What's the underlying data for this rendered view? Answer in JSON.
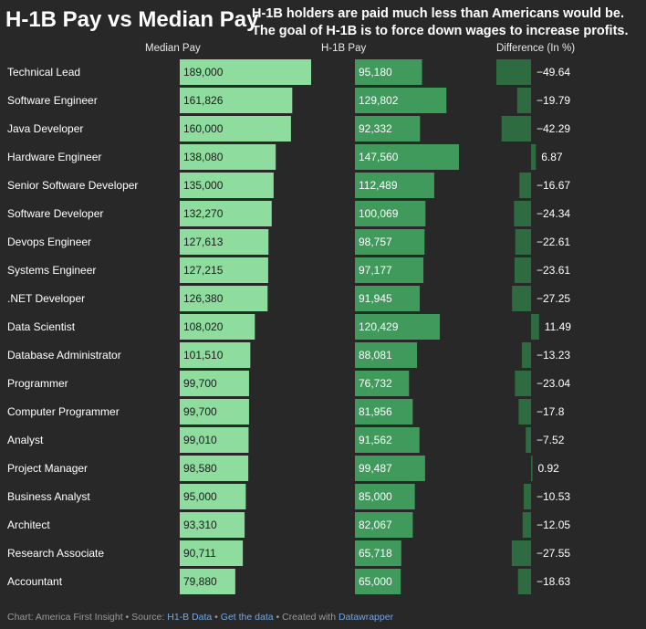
{
  "title": "H-1B Pay vs Median Pay",
  "subtitle_line1": "H-1B holders are paid much less than Americans would be.",
  "subtitle_line2": "The goal of H-1B is to force down wages to increase profits.",
  "colors": {
    "background": "#282828",
    "median_bar": "#8fdc9f",
    "h1b_bar": "#3f9a5c",
    "difference_bar": "#2f6b40",
    "text": "#ffffff"
  },
  "chart_data": {
    "type": "table",
    "columns": [
      "Median Pay",
      "H-1B Pay",
      "Difference (In %)"
    ],
    "rows": [
      {
        "role": "Technical Lead",
        "median": 189000,
        "median_label": "189,000",
        "h1b": 95180,
        "h1b_label": "95,180",
        "diff": -49.64,
        "diff_label": "−49.64"
      },
      {
        "role": "Software Engineer",
        "median": 161826,
        "median_label": "161,826",
        "h1b": 129802,
        "h1b_label": "129,802",
        "diff": -19.79,
        "diff_label": "−19.79"
      },
      {
        "role": "Java Developer",
        "median": 160000,
        "median_label": "160,000",
        "h1b": 92332,
        "h1b_label": "92,332",
        "diff": -42.29,
        "diff_label": "−42.29"
      },
      {
        "role": "Hardware Engineer",
        "median": 138080,
        "median_label": "138,080",
        "h1b": 147560,
        "h1b_label": "147,560",
        "diff": 6.87,
        "diff_label": "6.87"
      },
      {
        "role": "Senior Software Developer",
        "median": 135000,
        "median_label": "135,000",
        "h1b": 112489,
        "h1b_label": "112,489",
        "diff": -16.67,
        "diff_label": "−16.67"
      },
      {
        "role": "Software Developer",
        "median": 132270,
        "median_label": "132,270",
        "h1b": 100069,
        "h1b_label": "100,069",
        "diff": -24.34,
        "diff_label": "−24.34"
      },
      {
        "role": "Devops Engineer",
        "median": 127613,
        "median_label": "127,613",
        "h1b": 98757,
        "h1b_label": "98,757",
        "diff": -22.61,
        "diff_label": "−22.61"
      },
      {
        "role": "Systems Engineer",
        "median": 127215,
        "median_label": "127,215",
        "h1b": 97177,
        "h1b_label": "97,177",
        "diff": -23.61,
        "diff_label": "−23.61"
      },
      {
        "role": ".NET Developer",
        "median": 126380,
        "median_label": "126,380",
        "h1b": 91945,
        "h1b_label": "91,945",
        "diff": -27.25,
        "diff_label": "−27.25"
      },
      {
        "role": "Data Scientist",
        "median": 108020,
        "median_label": "108,020",
        "h1b": 120429,
        "h1b_label": "120,429",
        "diff": 11.49,
        "diff_label": "11.49"
      },
      {
        "role": "Database Administrator",
        "median": 101510,
        "median_label": "101,510",
        "h1b": 88081,
        "h1b_label": "88,081",
        "diff": -13.23,
        "diff_label": "−13.23"
      },
      {
        "role": "Programmer",
        "median": 99700,
        "median_label": "99,700",
        "h1b": 76732,
        "h1b_label": "76,732",
        "diff": -23.04,
        "diff_label": "−23.04"
      },
      {
        "role": "Computer Programmer",
        "median": 99700,
        "median_label": "99,700",
        "h1b": 81956,
        "h1b_label": "81,956",
        "diff": -17.8,
        "diff_label": "−17.8"
      },
      {
        "role": "Analyst",
        "median": 99010,
        "median_label": "99,010",
        "h1b": 91562,
        "h1b_label": "91,562",
        "diff": -7.52,
        "diff_label": "−7.52"
      },
      {
        "role": "Project Manager",
        "median": 98580,
        "median_label": "98,580",
        "h1b": 99487,
        "h1b_label": "99,487",
        "diff": 0.92,
        "diff_label": "0.92"
      },
      {
        "role": "Business Analyst",
        "median": 95000,
        "median_label": "95,000",
        "h1b": 85000,
        "h1b_label": "85,000",
        "diff": -10.53,
        "diff_label": "−10.53"
      },
      {
        "role": "Architect",
        "median": 93310,
        "median_label": "93,310",
        "h1b": 82067,
        "h1b_label": "82,067",
        "diff": -12.05,
        "diff_label": "−12.05"
      },
      {
        "role": "Research Associate",
        "median": 90711,
        "median_label": "90,711",
        "h1b": 65718,
        "h1b_label": "65,718",
        "diff": -27.55,
        "diff_label": "−27.55"
      },
      {
        "role": "Accountant",
        "median": 79880,
        "median_label": "79,880",
        "h1b": 65000,
        "h1b_label": "65,000",
        "diff": -18.63,
        "diff_label": "−18.63"
      }
    ]
  },
  "footer": {
    "prefix": "Chart: America First Insight • Source: ",
    "source_link": "H1-B Data",
    "sep1": " • ",
    "get_data_link": "Get the data",
    "sep2": " • Created with ",
    "datawrapper_link": "Datawrapper"
  }
}
